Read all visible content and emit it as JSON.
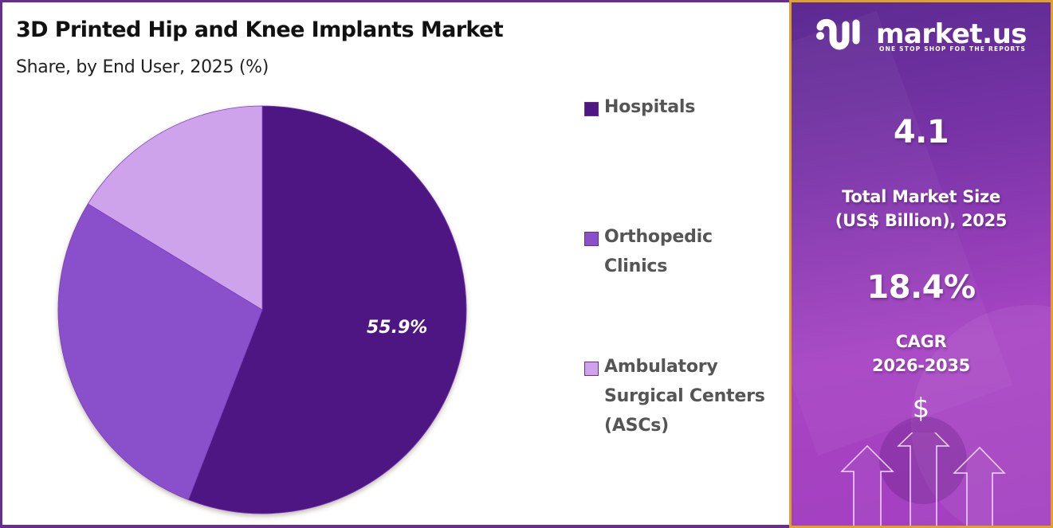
{
  "header": {
    "title": "3D Printed Hip and Knee Implants Market",
    "subtitle": "Share, by End User, 2025 (%)"
  },
  "chart_data": {
    "type": "pie",
    "title": "3D Printed Hip and Knee Implants Market",
    "subtitle": "Share, by End User, 2025 (%)",
    "categories": [
      "Hospitals",
      "Orthopedic Clinics",
      "Ambulatory Surgical Centers (ASCs)"
    ],
    "values": [
      55.9,
      27.8,
      16.3
    ],
    "colors": [
      "#4e1783",
      "#8a4fca",
      "#cfa3ec"
    ],
    "data_labels": [
      "55.9%",
      "",
      ""
    ],
    "start_angle": "12 o'clock, clockwise",
    "legend_position": "right"
  },
  "pie": {
    "label_hospitals": "55.9%"
  },
  "legend": {
    "items": [
      {
        "label_line1": "Hospitals",
        "label_line2": "",
        "label_line3": "",
        "color": "#4e1783"
      },
      {
        "label_line1": "Orthopedic",
        "label_line2": "Clinics",
        "label_line3": "",
        "color": "#8a4fca"
      },
      {
        "label_line1": "Ambulatory",
        "label_line2": "Surgical Centers",
        "label_line3": "(ASCs)",
        "color": "#cfa3ec"
      }
    ]
  },
  "sidebar": {
    "brand_name": "market.us",
    "brand_tagline": "ONE STOP SHOP FOR THE REPORTS",
    "market_size_value": "4.1",
    "market_size_label_line1": "Total Market Size",
    "market_size_label_line2": "(US$ Billion), 2025",
    "cagr_value": "18.4%",
    "cagr_label_line1": "CAGR",
    "cagr_label_line2": "2026-2035",
    "currency_symbol": "$",
    "accent_border": "#e0a12c"
  }
}
